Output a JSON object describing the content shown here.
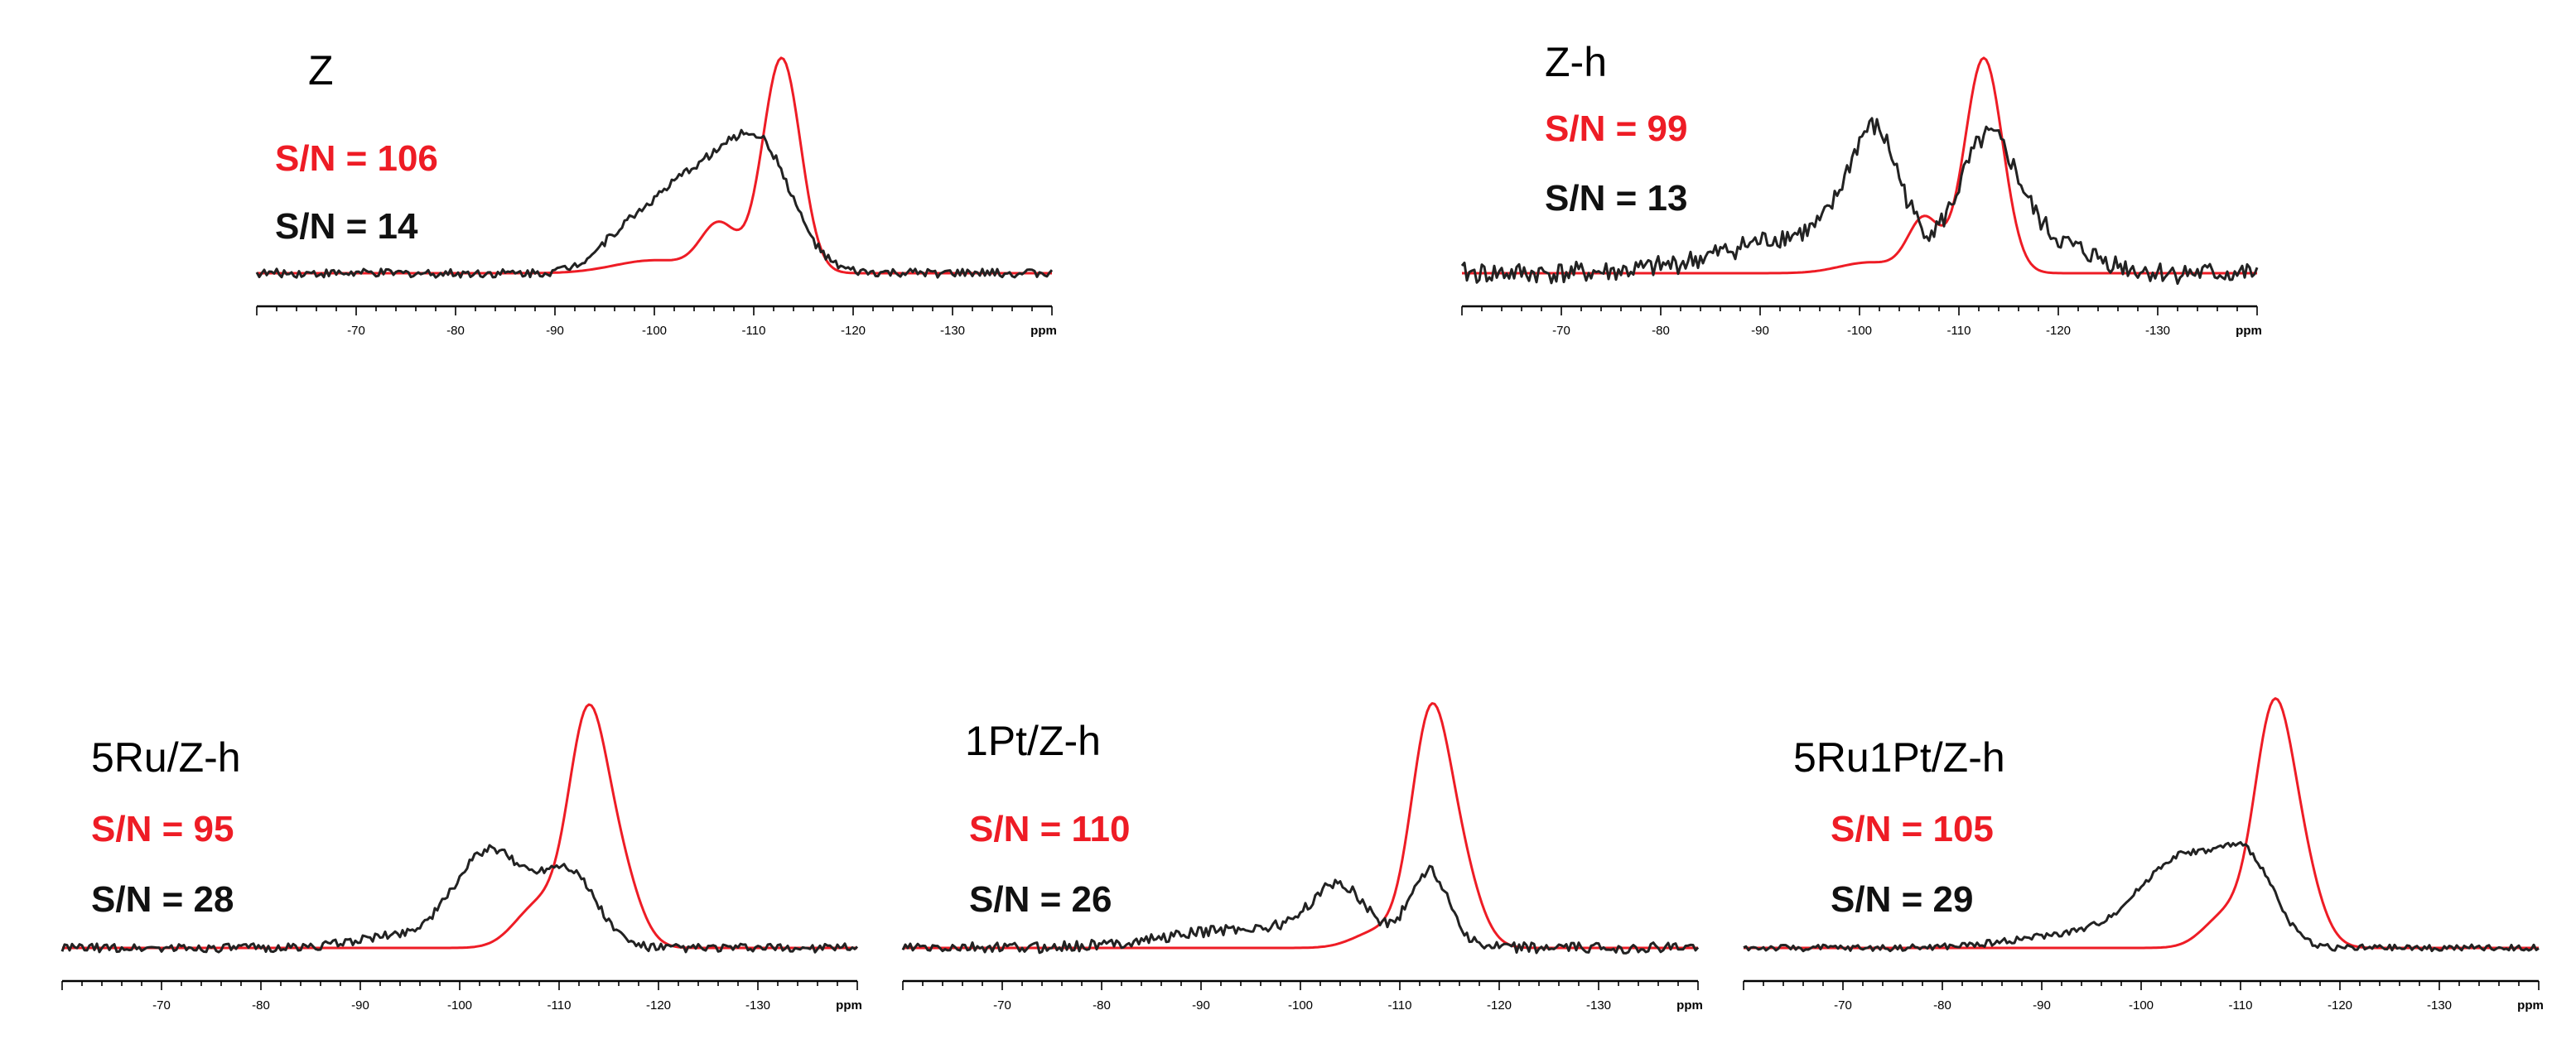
{
  "figure": {
    "colors": {
      "cp": "#ee1c25",
      "direct": "#222222",
      "axis": "#000000"
    },
    "unit_label": "ppm"
  },
  "chart_data": [
    {
      "type": "line",
      "title": "Z",
      "xlabel": "ppm",
      "xlim": [
        -60,
        -140
      ],
      "x_ticks": [
        -70,
        -80,
        -90,
        -100,
        -110,
        -120,
        -130
      ],
      "tick_labels": [
        "-70",
        "-80",
        "-90",
        "-100",
        "-110",
        "-120",
        "-130"
      ],
      "annotations": [
        "S/N = 106",
        "S/N = 14"
      ],
      "series": [
        {
          "name": "S/N = 106",
          "color": "#ee1c25",
          "peaks": [
            [
              -112.8,
              1.0,
              1.9
            ],
            [
              -106.5,
              0.22,
              1.8
            ],
            [
              -100,
              0.06,
              4
            ]
          ]
        },
        {
          "name": "S/N = 14",
          "color": "#222222",
          "peaks": [
            [
              -104.5,
              0.45,
              4.5
            ],
            [
              -111,
              0.46,
              3.2
            ],
            [
              -97,
              0.12,
              3
            ]
          ],
          "noise": 0.02
        }
      ]
    },
    {
      "type": "line",
      "title": "Z-h",
      "xlabel": "ppm",
      "xlim": [
        -60,
        -140
      ],
      "x_ticks": [
        -70,
        -80,
        -90,
        -100,
        -110,
        -120,
        -130
      ],
      "tick_labels": [
        "-70",
        "-80",
        "-90",
        "-100",
        "-110",
        "-120",
        "-130"
      ],
      "annotations": [
        "S/N = 99",
        "S/N = 13"
      ],
      "series": [
        {
          "name": "S/N = 99",
          "color": "#ee1c25",
          "peaks": [
            [
              -112.5,
              1.0,
              1.9
            ],
            [
              -106.5,
              0.25,
              1.6
            ],
            [
              -101,
              0.05,
              3
            ]
          ]
        },
        {
          "name": "S/N = 13",
          "color": "#222222",
          "peaks": [
            [
              -101.5,
              0.55,
              2.6
            ],
            [
              -113,
              0.6,
              3.0
            ],
            [
              -95,
              0.18,
              8
            ],
            [
              -120,
              0.12,
              4
            ]
          ],
          "noise": 0.05
        }
      ]
    },
    {
      "type": "line",
      "title": "5Ru/Z-h",
      "xlabel": "ppm",
      "xlim": [
        -60,
        -140
      ],
      "x_ticks": [
        -70,
        -80,
        -90,
        -100,
        -110,
        -120,
        -130
      ],
      "tick_labels": [
        "-70",
        "-80",
        "-90",
        "-100",
        "-110",
        "-120",
        "-130"
      ],
      "annotations": [
        "S/N = 95",
        "S/N = 28"
      ],
      "series": [
        {
          "name": "S/N = 95",
          "color": "#ee1c25",
          "peaks": [
            [
              -112.8,
              1.0,
              1.9
            ],
            [
              -108,
              0.2,
              2.4
            ],
            [
              -116,
              0.35,
              2.0
            ]
          ]
        },
        {
          "name": "S/N = 28",
          "color": "#222222",
          "peaks": [
            [
              -103,
              0.45,
              3.6
            ],
            [
              -111,
              0.34,
              2.8
            ],
            [
              -93,
              0.05,
              4
            ]
          ],
          "noise": 0.02
        }
      ]
    },
    {
      "type": "line",
      "title": "1Pt/Z-h",
      "xlabel": "ppm",
      "xlim": [
        -60,
        -140
      ],
      "x_ticks": [
        -70,
        -80,
        -90,
        -100,
        -110,
        -120,
        -130
      ],
      "tick_labels": [
        "-70",
        "-80",
        "-90",
        "-100",
        "-110",
        "-120",
        "-130"
      ],
      "annotations": [
        "S/N = 110",
        "S/N = 26"
      ],
      "series": [
        {
          "name": "S/N = 110",
          "color": "#ee1c25",
          "peaks": [
            [
              -113,
              1.0,
              1.9
            ],
            [
              -108,
              0.08,
              2.5
            ],
            [
              -116,
              0.35,
              2.0
            ]
          ]
        },
        {
          "name": "S/N = 26",
          "color": "#222222",
          "peaks": [
            [
              -104,
              0.25,
              2.8
            ],
            [
              -113,
              0.35,
              2.0
            ],
            [
              -95,
              0.09,
              8
            ]
          ],
          "noise": 0.025
        }
      ]
    },
    {
      "type": "line",
      "title": "5Ru1Pt/Z-h",
      "xlabel": "ppm",
      "xlim": [
        -60,
        -140
      ],
      "x_ticks": [
        -70,
        -80,
        -90,
        -100,
        -110,
        -120,
        -130
      ],
      "tick_labels": [
        "-70",
        "-80",
        "-90",
        "-100",
        "-110",
        "-120",
        "-130"
      ],
      "annotations": [
        "S/N = 105",
        "S/N = 29"
      ],
      "series": [
        {
          "name": "S/N = 105",
          "color": "#ee1c25",
          "peaks": [
            [
              -113.2,
              1.0,
              1.9
            ],
            [
              -108.5,
              0.15,
              2.2
            ],
            [
              -116,
              0.35,
              2.0
            ]
          ]
        },
        {
          "name": "S/N = 29",
          "color": "#222222",
          "peaks": [
            [
              -104.5,
              0.42,
              4.5
            ],
            [
              -111,
              0.3,
              2.6
            ],
            [
              -93,
              0.06,
              6
            ]
          ],
          "noise": 0.015
        }
      ]
    }
  ]
}
